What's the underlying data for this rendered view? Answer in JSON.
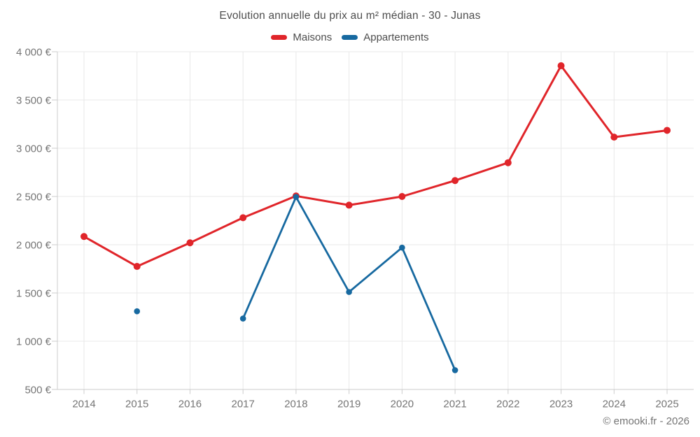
{
  "page": {
    "attribution": "© emooki.fr - 2026"
  },
  "chart_data": {
    "type": "line",
    "title": "Evolution annuelle du prix au m² médian - 30 - Junas",
    "categories": [
      "2014",
      "2015",
      "2016",
      "2017",
      "2018",
      "2019",
      "2020",
      "2021",
      "2022",
      "2023",
      "2024",
      "2025"
    ],
    "series": [
      {
        "name": "Maisons",
        "color": "#e0252a",
        "values": [
          2085,
          1775,
          2020,
          2280,
          2505,
          2410,
          2500,
          2665,
          2850,
          3855,
          3115,
          3185
        ]
      },
      {
        "name": "Appartements",
        "color": "#1769a0",
        "values": [
          null,
          1310,
          null,
          1235,
          2495,
          1510,
          1970,
          700,
          null,
          null,
          null,
          null
        ]
      }
    ],
    "ylim": [
      500,
      4000
    ],
    "yticks": [
      500,
      1000,
      1500,
      2000,
      2500,
      3000,
      3500,
      4000
    ],
    "ytick_labels": [
      "500 €",
      "1 000 €",
      "1 500 €",
      "2 000 €",
      "2 500 €",
      "3 000 €",
      "3 500 €",
      "4 000 €"
    ],
    "currency_suffix": "€",
    "legend_position": "top",
    "grid": true,
    "span_gaps": false
  }
}
